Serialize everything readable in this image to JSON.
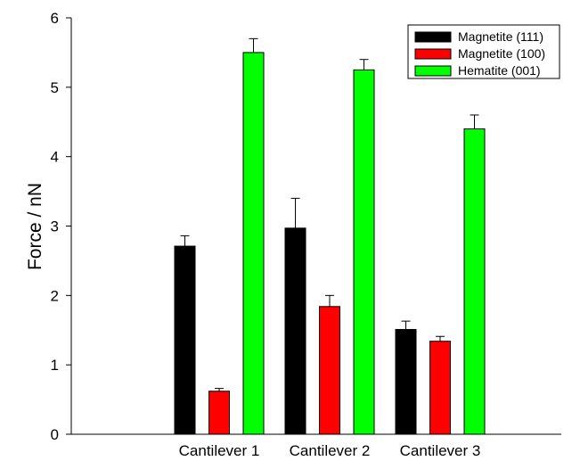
{
  "chart_data": {
    "type": "bar",
    "ylabel": "Force / nN",
    "xlabel": "",
    "categories": [
      "Cantilever 1",
      "Cantilever 2",
      "Cantilever 3"
    ],
    "ylim": [
      0,
      6
    ],
    "yticks": [
      0,
      1,
      2,
      3,
      4,
      5,
      6
    ],
    "grid": false,
    "legend_position": "top-right",
    "series": [
      {
        "name": "Magnetite (111)",
        "color": "#000000",
        "values": [
          2.71,
          2.97,
          1.51
        ],
        "errors": [
          0.15,
          0.43,
          0.12
        ]
      },
      {
        "name": "Magnetite (100)",
        "color": "#ff0000",
        "values": [
          0.62,
          1.84,
          1.34
        ],
        "errors": [
          0.04,
          0.16,
          0.07
        ]
      },
      {
        "name": "Hematite (001)",
        "color": "#00ff00",
        "values": [
          5.5,
          5.25,
          4.4
        ],
        "errors": [
          0.2,
          0.15,
          0.2
        ]
      }
    ]
  }
}
